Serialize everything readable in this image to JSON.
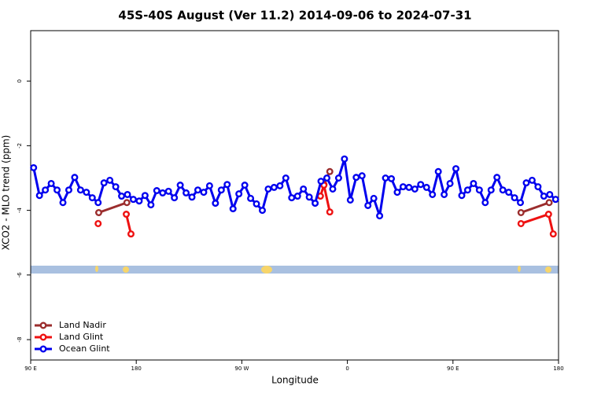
{
  "chart_data": {
    "type": "line",
    "title": "45S-40S August (Ver 11.2)   2014-09-06 to 2024-07-31",
    "xlabel": "Longitude",
    "ylabel": "XCO2 - MLO trend (ppm)",
    "xlim": [
      90,
      540
    ],
    "ylim": [
      -8.63,
      1.56
    ],
    "xticks": [
      {
        "value": 90,
        "label": "90 E"
      },
      180,
      {
        "value": 270,
        "label": "90 W"
      },
      {
        "value": 360,
        "label": "0"
      },
      {
        "value": 450,
        "label": "90 E"
      },
      {
        "value": 540,
        "label": "180"
      }
    ],
    "yticks": [
      0,
      -2,
      -4,
      -6,
      -8
    ],
    "legend": "bottom-left",
    "series": [
      {
        "name": "Land Nadir",
        "color": "#9b2d2d",
        "x": [
          148,
          172,
          null,
          340,
          345,
          null,
          508,
          532
        ],
        "values": [
          -4.07,
          -3.76,
          null,
          -3.2,
          -2.8,
          null,
          -4.07,
          -3.76
        ]
      },
      {
        "name": "Land Glint",
        "color": "#ee1111",
        "x": [
          147.5,
          null,
          171.5,
          175.5,
          null,
          337,
          340,
          345,
          null,
          508,
          531.5,
          535.5
        ],
        "values": [
          -4.41,
          null,
          -4.12,
          -4.73,
          null,
          -3.56,
          -3.22,
          -4.05,
          null,
          -4.41,
          -4.12,
          -4.73
        ]
      },
      {
        "name": "Ocean Glint",
        "color": "#0000ee",
        "x": [
          92.5,
          97.5,
          102.5,
          107.5,
          112.5,
          117.5,
          122.5,
          127.5,
          132.5,
          137.5,
          142.5,
          147.5,
          152.5,
          157.5,
          162.5,
          167.5,
          172.5,
          177.5,
          182.5,
          187.5,
          192.5,
          197.5,
          202.5,
          207.5,
          212.5,
          217.5,
          222.5,
          227.5,
          232.5,
          237.5,
          242.5,
          247.5,
          252.5,
          257.5,
          262.5,
          267.5,
          272.5,
          277.5,
          282.5,
          287.5,
          292.5,
          297.5,
          302.5,
          307.5,
          312.5,
          317.5,
          322.5,
          327.5,
          332.5,
          337.5,
          342.5,
          347.5,
          352.5,
          357.5,
          362.5,
          367.5,
          372.5,
          377.5,
          382.5,
          387.5,
          392.5,
          397.5,
          402.5,
          407.5,
          412.5,
          417.5,
          422.5,
          427.5,
          432.5,
          437.5,
          442.5,
          447.5,
          452.5,
          457.5,
          462.5,
          467.5,
          472.5,
          477.5,
          482.5,
          487.5,
          492.5,
          497.5,
          502.5,
          507.5,
          512.5,
          517.5,
          522.5,
          527.5,
          532.5,
          537.5
        ],
        "values": [
          -2.68,
          -3.54,
          -3.37,
          -3.17,
          -3.37,
          -3.76,
          -3.37,
          -2.98,
          -3.37,
          -3.44,
          -3.61,
          -3.76,
          -3.15,
          -3.07,
          -3.27,
          -3.56,
          -3.51,
          -3.66,
          -3.71,
          -3.54,
          -3.83,
          -3.39,
          -3.46,
          -3.41,
          -3.61,
          -3.22,
          -3.46,
          -3.59,
          -3.37,
          -3.44,
          -3.24,
          -3.78,
          -3.37,
          -3.2,
          -3.95,
          -3.49,
          -3.22,
          -3.63,
          -3.8,
          -4.0,
          -3.34,
          -3.29,
          -3.24,
          -3.0,
          -3.61,
          -3.56,
          -3.34,
          -3.59,
          -3.78,
          -3.1,
          -3.0,
          -3.34,
          -3.0,
          -2.41,
          -3.68,
          -2.98,
          -2.93,
          -3.85,
          -3.63,
          -4.17,
          -3.0,
          -3.02,
          -3.44,
          -3.27,
          -3.29,
          -3.34,
          -3.2,
          -3.29,
          -3.51,
          -2.8,
          -3.51,
          -3.17,
          -2.71,
          -3.54,
          -3.37,
          -3.17,
          -3.37,
          -3.76,
          -3.37,
          -2.98,
          -3.37,
          -3.44,
          -3.61,
          -3.76,
          -3.15,
          -3.07,
          -3.27,
          -3.56,
          -3.51,
          -3.66
        ]
      }
    ]
  }
}
